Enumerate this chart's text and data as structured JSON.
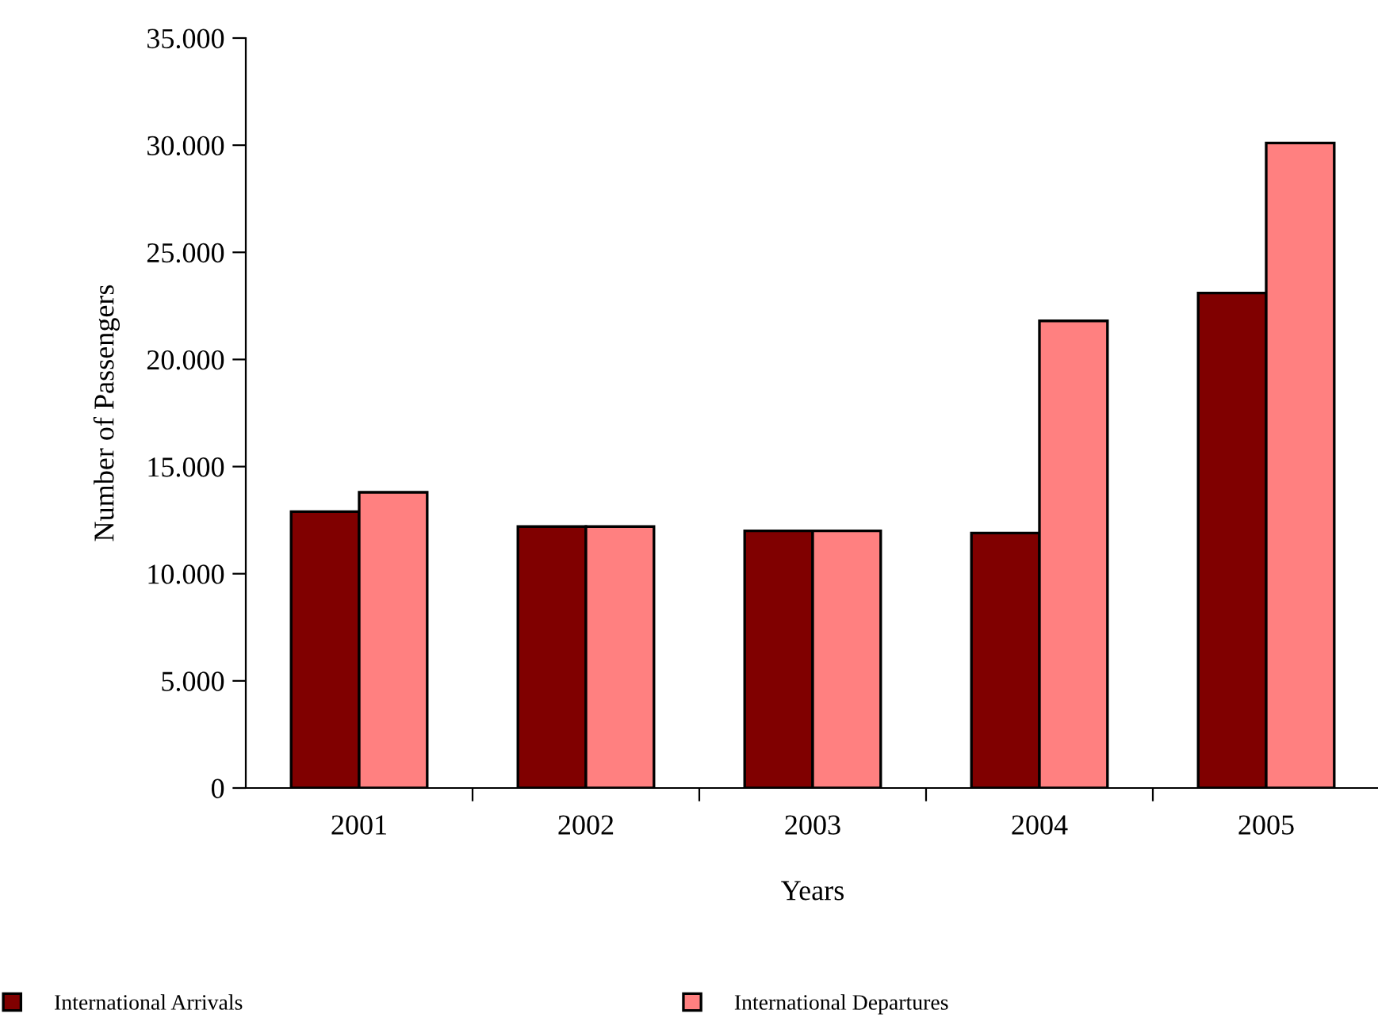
{
  "chart_data": {
    "type": "bar",
    "xlabel": "Years",
    "ylabel": "Number of Passengers",
    "categories": [
      "2001",
      "2002",
      "2003",
      "2004",
      "2005"
    ],
    "series": [
      {
        "name": "International Arrivals",
        "color": "#800000",
        "values": [
          12900,
          12200,
          12000,
          11900,
          23100
        ]
      },
      {
        "name": "International Departures",
        "color": "#ff8080",
        "values": [
          13800,
          12200,
          12000,
          21800,
          30100
        ]
      }
    ],
    "ylim": [
      0,
      35000
    ],
    "yticks": [
      0,
      {
        "value": 5000,
        "label": "5.000"
      },
      {
        "value": 10000,
        "label": "10.000"
      },
      {
        "value": 15000,
        "label": "15.000"
      },
      {
        "value": 20000,
        "label": "20.000"
      },
      {
        "value": 25000,
        "label": "25.000"
      },
      {
        "value": 30000,
        "label": "30.000"
      },
      {
        "value": 35000,
        "label": "35.000"
      }
    ],
    "grid": false,
    "legend": "bottom left"
  }
}
